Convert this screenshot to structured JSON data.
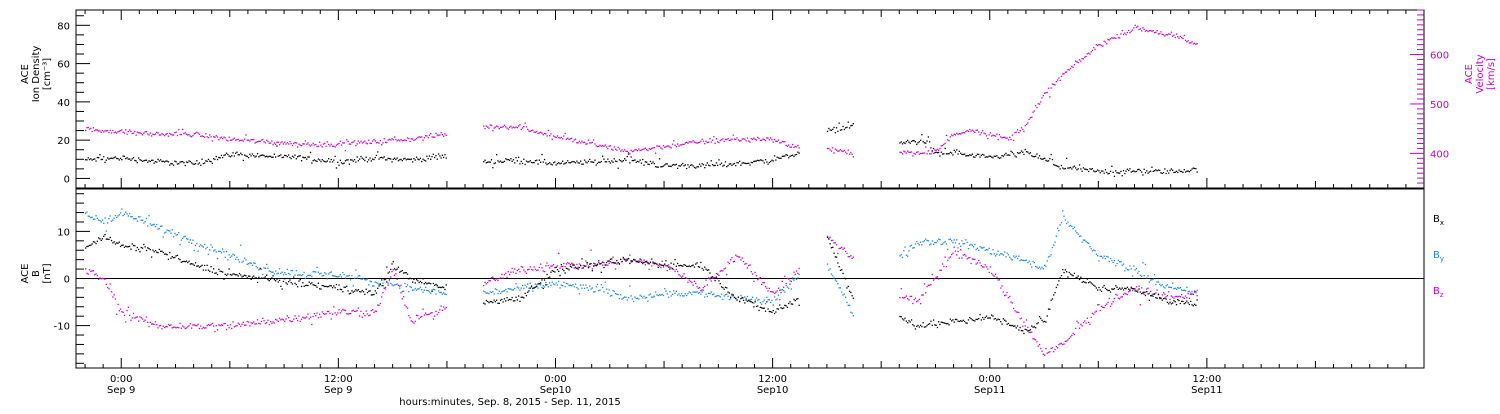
{
  "chart_data": [
    {
      "type": "scatter",
      "panel": "top",
      "ylabel": [
        "ACE",
        "Ion Density",
        "[cm⁻³]"
      ],
      "ylim": [
        -5,
        88
      ],
      "yticks": [
        0,
        20,
        40,
        60,
        80
      ],
      "y2label": [
        "ACE",
        "Velocity",
        "[km/s]"
      ],
      "y2lim": [
        330,
        690
      ],
      "y2ticks": [
        400,
        500,
        600
      ],
      "colors": {
        "density": "#000000",
        "velocity": "#cc00cc"
      },
      "series": [
        {
          "name": "",
          "axis": "left",
          "color": "#000000",
          "x": [
            -2,
            0,
            2,
            4,
            6,
            8,
            10,
            12,
            14,
            16,
            18,
            20,
            22,
            24,
            26,
            28,
            30,
            32,
            34,
            36,
            37.5,
            39,
            40.5,
            43,
            44.5,
            45,
            46,
            47,
            48,
            50,
            52,
            54,
            56,
            58,
            59.5
          ],
          "y": [
            10,
            11,
            9,
            8,
            13,
            12,
            11,
            9,
            11,
            10,
            12,
            9,
            10,
            8,
            9,
            10,
            7,
            7,
            8,
            10,
            14,
            25,
            28,
            19,
            20,
            13,
            14,
            12,
            11,
            14,
            6,
            4,
            4,
            4,
            5
          ],
          "gaps_after_x": [
            18,
            37.5,
            40.5,
            44.5
          ]
        },
        {
          "name": "",
          "axis": "right",
          "color": "#cc00cc",
          "x": [
            -2,
            0,
            2,
            4,
            6,
            8,
            10,
            12,
            14,
            16,
            18,
            20,
            22,
            24,
            26,
            28,
            30,
            32,
            34,
            36,
            37.5,
            39,
            40.5,
            43,
            44.5,
            45,
            46,
            47,
            48,
            49,
            50,
            51,
            52,
            54,
            56,
            58,
            59.5
          ],
          "y": [
            450,
            445,
            440,
            440,
            430,
            425,
            420,
            420,
            425,
            430,
            440,
            455,
            455,
            435,
            420,
            405,
            415,
            425,
            430,
            430,
            410,
            410,
            400,
            405,
            400,
            405,
            440,
            450,
            440,
            430,
            460,
            520,
            560,
            620,
            655,
            640,
            620
          ],
          "gaps_after_x": [
            18,
            37.5,
            40.5,
            44.5
          ]
        }
      ]
    },
    {
      "type": "scatter",
      "panel": "bottom",
      "ylabel": [
        "ACE",
        "B",
        "[nT]"
      ],
      "ylim": [
        -19,
        19
      ],
      "yticks": [
        -10,
        0,
        10
      ],
      "zero_line": true,
      "legend": {
        "position": "right",
        "entries": [
          {
            "label": "B",
            "sub": "x",
            "color": "#000000"
          },
          {
            "label": "B",
            "sub": "y",
            "color": "#1a88e0"
          },
          {
            "label": "B",
            "sub": "z",
            "color": "#cc00cc"
          }
        ]
      },
      "series": [
        {
          "name": "",
          "color": "#000000",
          "x": [
            -2,
            -1,
            0,
            2,
            4,
            6,
            8,
            10,
            12,
            14,
            15,
            16,
            18,
            20,
            22,
            24,
            26,
            28,
            30,
            32,
            34,
            36,
            37.5,
            39,
            40.5,
            43,
            44,
            46,
            48,
            50,
            51,
            52,
            54,
            56,
            58,
            59.5
          ],
          "y": [
            7,
            9,
            7,
            6,
            3,
            1,
            0,
            -1,
            -2,
            -3,
            3,
            0,
            -2,
            -5,
            -4,
            2,
            3,
            4,
            3,
            3,
            -4,
            -7,
            -4,
            9,
            -5,
            -8,
            -10,
            -9,
            -8,
            -11,
            -9,
            2,
            -2,
            -2,
            -5,
            -5
          ],
          "gaps_after_x": [
            18,
            37.5,
            40.5
          ]
        },
        {
          "name": "",
          "color": "#1a88e0",
          "x": [
            -2,
            -1,
            0,
            2,
            4,
            6,
            8,
            10,
            12,
            14,
            15,
            16,
            18,
            20,
            22,
            24,
            26,
            28,
            30,
            32,
            34,
            36,
            37.5,
            39,
            40.5,
            43,
            44,
            46,
            48,
            50,
            51,
            52,
            54,
            56,
            58,
            59.5
          ],
          "y": [
            14,
            12,
            14,
            11,
            8,
            5,
            2,
            1,
            1,
            -1,
            -1,
            -2,
            -3,
            -3,
            -2,
            -1,
            -2,
            -4,
            -3,
            -3,
            -4,
            -5,
            1,
            3,
            -8,
            5,
            8,
            8,
            6,
            4,
            2,
            13,
            5,
            2,
            -2,
            -3
          ],
          "gaps_after_x": [
            18,
            37.5,
            40.5
          ]
        },
        {
          "name": "",
          "color": "#cc00cc",
          "x": [
            -2,
            -1,
            0,
            2,
            4,
            6,
            8,
            10,
            12,
            14,
            15,
            16,
            18,
            20,
            22,
            24,
            26,
            28,
            30,
            32,
            34,
            36,
            37.5,
            39,
            40.5,
            43,
            44,
            46,
            48,
            50,
            51,
            52,
            54,
            56,
            58,
            59.5
          ],
          "y": [
            2,
            0,
            -7,
            -10,
            -10,
            -10,
            -9,
            -8,
            -7,
            -7,
            2,
            -9,
            -6,
            -1,
            2,
            3,
            3,
            4,
            3,
            -2,
            5,
            -3,
            2,
            9,
            4,
            -3,
            -5,
            6,
            2,
            -10,
            -16,
            -14,
            -6,
            -2,
            -4,
            -3
          ],
          "gaps_after_x": [
            18,
            37.5,
            40.5
          ]
        }
      ]
    }
  ],
  "x_axis": {
    "range_hours": [
      -2.5,
      72
    ],
    "ticks": [
      {
        "hours": 0,
        "time": "0:00",
        "date": "Sep 9"
      },
      {
        "hours": 12,
        "time": "12:00",
        "date": "Sep 9"
      },
      {
        "hours": 24,
        "time": "0:00",
        "date": "Sep10"
      },
      {
        "hours": 36,
        "time": "12:00",
        "date": "Sep10"
      },
      {
        "hours": 48,
        "time": "0:00",
        "date": "Sep11"
      },
      {
        "hours": 60,
        "time": "12:00",
        "date": "Sep11"
      }
    ],
    "label": "hours:minutes, Sep.  8, 2015 - Sep. 11, 2015"
  }
}
